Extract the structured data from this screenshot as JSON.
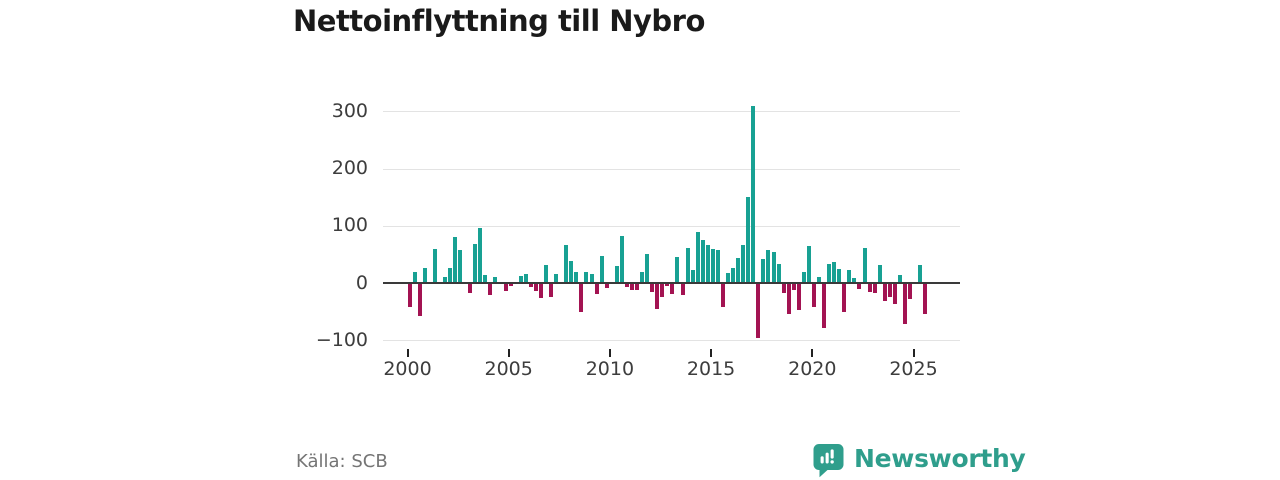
{
  "title": "Nettoinflyttning till Nybro",
  "source": "Källa: SCB",
  "branding": {
    "name": "Newsworthy",
    "color": "#2f9e8c",
    "icon": "speech-bubble-bar-chart-icon"
  },
  "chart_data": {
    "type": "bar",
    "title": "Nettoinflyttning till Nybro",
    "x_start": "2000 Q1",
    "x_end": "2025 Q3",
    "frequency": "quarterly",
    "y_ticks": [
      300,
      200,
      100,
      0,
      -100
    ],
    "x_ticks": [
      2000,
      2005,
      2010,
      2015,
      2020,
      2025
    ],
    "ylim": [
      -110,
      330
    ],
    "grid": true,
    "legend": "none",
    "colors": {
      "positive": "#18a193",
      "negative": "#a31352"
    },
    "series": [
      {
        "name": "Nettoinflyttning",
        "values": [
          -40,
          20,
          -55,
          27,
          0,
          59,
          0,
          10,
          27,
          80,
          57,
          0,
          -16,
          69,
          97,
          14,
          -19,
          11,
          0,
          -13,
          -3,
          0,
          12,
          16,
          -5,
          -12,
          -24,
          32,
          -22,
          16,
          0,
          67,
          39,
          20,
          -49,
          19,
          16,
          -17,
          48,
          -7,
          0,
          30,
          82,
          -6,
          -10,
          -11,
          20,
          51,
          -14,
          -44,
          -22,
          -3,
          -17,
          46,
          -19,
          62,
          22,
          89,
          75,
          66,
          60,
          58,
          -40,
          18,
          26,
          44,
          66,
          150,
          310,
          -95,
          42,
          58,
          55,
          33,
          -16,
          -53,
          -10,
          -46,
          19,
          65,
          -40,
          10,
          -77,
          34,
          37,
          24,
          -48,
          22,
          8,
          -9,
          62,
          -14,
          -16,
          31,
          -30,
          -22,
          -35,
          14,
          -70,
          -26,
          0,
          31,
          -52
        ]
      }
    ]
  }
}
